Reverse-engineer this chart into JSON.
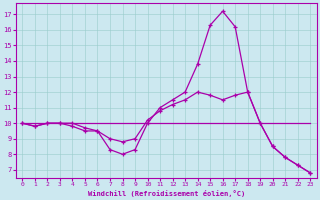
{
  "xlabel": "Windchill (Refroidissement éolien,°C)",
  "bg_color": "#cce8f0",
  "line_color": "#aa00aa",
  "grid_color": "#99cccc",
  "xlim": [
    -0.5,
    23.5
  ],
  "ylim": [
    6.5,
    17.7
  ],
  "yticks": [
    7,
    8,
    9,
    10,
    11,
    12,
    13,
    14,
    15,
    16,
    17
  ],
  "xticks": [
    0,
    1,
    2,
    3,
    4,
    5,
    6,
    7,
    8,
    9,
    10,
    11,
    12,
    13,
    14,
    15,
    16,
    17,
    18,
    19,
    20,
    21,
    22,
    23
  ],
  "series1_x": [
    0,
    1,
    2,
    3,
    4,
    5,
    6,
    7,
    8,
    9,
    10,
    11,
    12,
    13,
    14,
    15,
    16,
    17,
    18,
    19,
    20,
    21,
    22,
    23
  ],
  "series1_y": [
    10.0,
    9.8,
    10.0,
    10.0,
    10.0,
    9.7,
    9.5,
    8.3,
    8.0,
    8.3,
    10.0,
    11.0,
    11.5,
    12.0,
    13.8,
    16.3,
    17.2,
    16.2,
    12.0,
    10.0,
    8.5,
    7.8,
    7.3,
    6.8
  ],
  "series2_x": [
    0,
    1,
    2,
    3,
    4,
    5,
    6,
    7,
    8,
    9,
    10,
    11,
    12,
    13,
    14,
    15,
    16,
    17,
    18,
    19,
    20,
    21,
    22,
    23
  ],
  "series2_y": [
    10.0,
    9.8,
    10.0,
    10.0,
    9.8,
    9.5,
    9.5,
    9.0,
    8.8,
    9.0,
    10.2,
    10.8,
    11.2,
    11.5,
    12.0,
    11.8,
    11.5,
    11.8,
    12.0,
    10.0,
    8.5,
    7.8,
    7.3,
    6.8
  ],
  "series3_x": [
    0,
    23
  ],
  "series3_y": [
    10.0,
    10.0
  ]
}
